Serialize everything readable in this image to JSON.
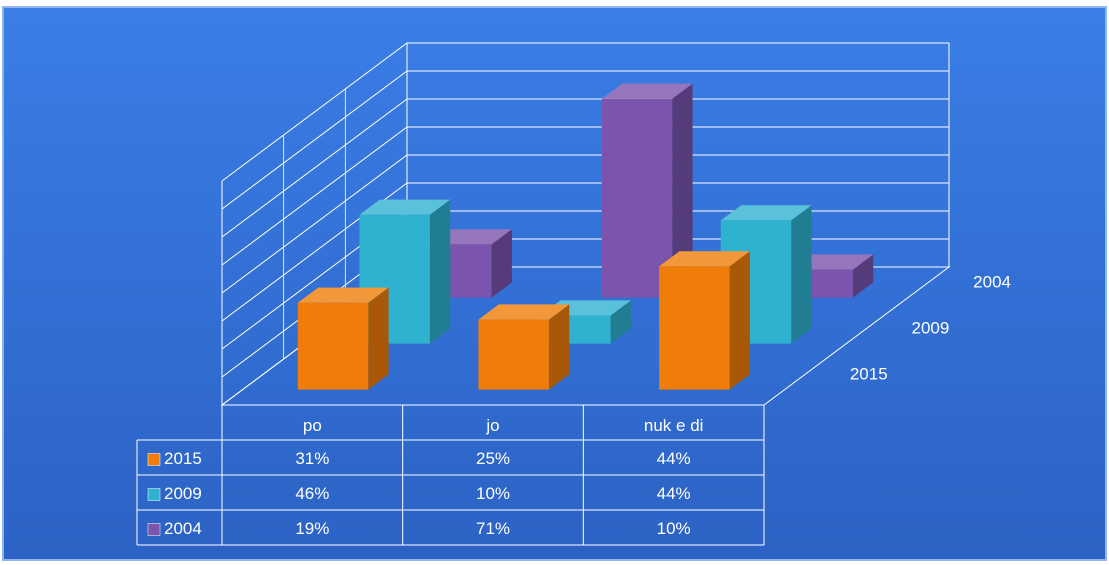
{
  "chart_data": {
    "type": "bar3d",
    "categories": [
      "po",
      "jo",
      "nuk e di"
    ],
    "series": [
      {
        "name": "2015",
        "color": "#f07d0a",
        "values": [
          31,
          25,
          44
        ],
        "value_labels": [
          "31%",
          "25%",
          "44%"
        ]
      },
      {
        "name": "2009",
        "color": "#2fb2cf",
        "values": [
          46,
          10,
          44
        ],
        "value_labels": [
          "46%",
          "10%",
          "44%"
        ]
      },
      {
        "name": "2004",
        "color": "#7a54ad",
        "values": [
          19,
          71,
          10
        ],
        "value_labels": [
          "19%",
          "71%",
          "10%"
        ]
      }
    ],
    "ylim": [
      0,
      80
    ],
    "yticks": [
      0,
      10,
      20,
      30,
      40,
      50,
      60,
      70,
      80
    ],
    "grid": true,
    "data_table": true
  }
}
